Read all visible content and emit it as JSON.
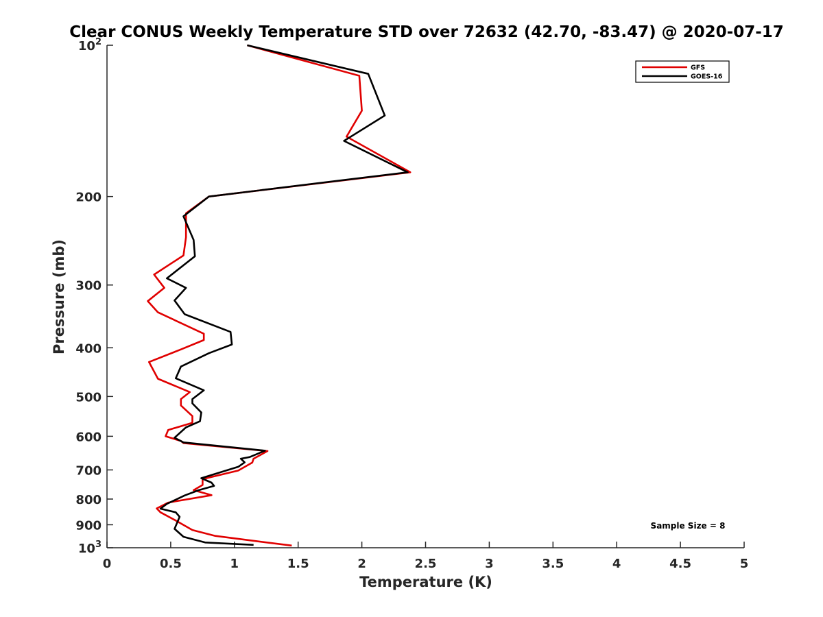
{
  "chart_data": {
    "type": "line",
    "title": "Clear CONUS Weekly Temperature STD over 72632 (42.70, -83.47) @ 2020-07-17",
    "xlabel": "Temperature (K)",
    "ylabel": "Pressure (mb)",
    "xlim": [
      0,
      5
    ],
    "ylim": [
      100,
      1000
    ],
    "y_scale": "log",
    "y_reversed": true,
    "grid": false,
    "legend_position": "top-right",
    "x_ticks": [
      {
        "value": 0,
        "label": "0"
      },
      {
        "value": 0.5,
        "label": "0.5"
      },
      {
        "value": 1,
        "label": "1"
      },
      {
        "value": 1.5,
        "label": "1.5"
      },
      {
        "value": 2,
        "label": "2"
      },
      {
        "value": 2.5,
        "label": "2.5"
      },
      {
        "value": 3,
        "label": "3"
      },
      {
        "value": 3.5,
        "label": "3.5"
      },
      {
        "value": 4,
        "label": "4"
      },
      {
        "value": 4.5,
        "label": "4.5"
      },
      {
        "value": 5,
        "label": "5"
      }
    ],
    "y_ticks": [
      {
        "value": 100,
        "base": "10",
        "exp": "2"
      },
      {
        "value": 200,
        "base": "200",
        "exp": ""
      },
      {
        "value": 300,
        "base": "300",
        "exp": ""
      },
      {
        "value": 400,
        "base": "400",
        "exp": ""
      },
      {
        "value": 500,
        "base": "500",
        "exp": ""
      },
      {
        "value": 600,
        "base": "600",
        "exp": ""
      },
      {
        "value": 700,
        "base": "700",
        "exp": ""
      },
      {
        "value": 800,
        "base": "800",
        "exp": ""
      },
      {
        "value": 900,
        "base": "900",
        "exp": ""
      },
      {
        "value": 1000,
        "base": "10",
        "exp": "3"
      }
    ],
    "annotation": "Sample Size = 8",
    "series": [
      {
        "name": "GFS",
        "color": "#e00000",
        "points": [
          [
            1.1,
            100
          ],
          [
            1.98,
            115
          ],
          [
            2.0,
            135
          ],
          [
            1.88,
            152
          ],
          [
            2.38,
            179
          ],
          [
            0.8,
            200
          ],
          [
            0.62,
            216
          ],
          [
            0.62,
            241
          ],
          [
            0.6,
            262
          ],
          [
            0.37,
            286
          ],
          [
            0.45,
            304
          ],
          [
            0.32,
            323
          ],
          [
            0.4,
            340
          ],
          [
            0.76,
            375
          ],
          [
            0.76,
            386
          ],
          [
            0.58,
            403
          ],
          [
            0.33,
            427
          ],
          [
            0.4,
            461
          ],
          [
            0.65,
            490
          ],
          [
            0.58,
            506
          ],
          [
            0.58,
            521
          ],
          [
            0.67,
            547
          ],
          [
            0.67,
            564
          ],
          [
            0.48,
            583
          ],
          [
            0.46,
            600
          ],
          [
            0.58,
            613
          ],
          [
            0.6,
            619
          ],
          [
            1.26,
            642
          ],
          [
            1.15,
            665
          ],
          [
            1.14,
            677
          ],
          [
            1.03,
            702
          ],
          [
            0.75,
            730
          ],
          [
            0.75,
            750
          ],
          [
            0.68,
            768
          ],
          [
            0.82,
            786
          ],
          [
            0.48,
            813
          ],
          [
            0.39,
            835
          ],
          [
            0.42,
            850
          ],
          [
            0.53,
            880
          ],
          [
            0.67,
            922
          ],
          [
            0.85,
            947
          ],
          [
            1.18,
            971
          ],
          [
            1.45,
            990
          ]
        ]
      },
      {
        "name": "GOES-16",
        "color": "#000000",
        "points": [
          [
            1.1,
            100
          ],
          [
            2.05,
            114
          ],
          [
            2.18,
            138
          ],
          [
            1.86,
            155
          ],
          [
            2.36,
            179
          ],
          [
            0.8,
            200
          ],
          [
            0.6,
            219
          ],
          [
            0.68,
            244
          ],
          [
            0.69,
            263
          ],
          [
            0.47,
            291
          ],
          [
            0.62,
            304
          ],
          [
            0.53,
            322
          ],
          [
            0.61,
            343
          ],
          [
            0.97,
            372
          ],
          [
            0.98,
            394
          ],
          [
            0.8,
            410
          ],
          [
            0.58,
            436
          ],
          [
            0.54,
            460
          ],
          [
            0.76,
            486
          ],
          [
            0.67,
            506
          ],
          [
            0.67,
            516
          ],
          [
            0.74,
            538
          ],
          [
            0.73,
            560
          ],
          [
            0.62,
            576
          ],
          [
            0.53,
            604
          ],
          [
            0.6,
            617
          ],
          [
            1.24,
            641
          ],
          [
            1.12,
            660
          ],
          [
            1.05,
            665
          ],
          [
            1.08,
            676
          ],
          [
            1.03,
            690
          ],
          [
            0.74,
            727
          ],
          [
            0.82,
            742
          ],
          [
            0.84,
            753
          ],
          [
            0.72,
            768
          ],
          [
            0.61,
            787
          ],
          [
            0.47,
            818
          ],
          [
            0.42,
            836
          ],
          [
            0.54,
            850
          ],
          [
            0.57,
            868
          ],
          [
            0.53,
            917
          ],
          [
            0.6,
            951
          ],
          [
            0.77,
            976
          ],
          [
            1.15,
            987
          ]
        ]
      }
    ]
  }
}
